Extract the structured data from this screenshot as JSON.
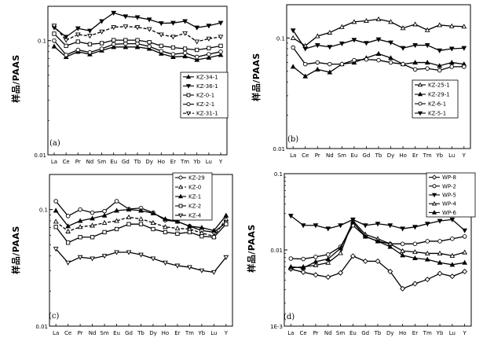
{
  "chart_data": [
    {
      "type": "line",
      "panel_label": "(a)",
      "ylabel": "样品/PAAS",
      "yscale": "log",
      "ylim": [
        0.01,
        0.2
      ],
      "y_ticks": [
        0.01,
        0.1
      ],
      "y_tick_labels": [
        "0.01",
        "0.1"
      ],
      "categories": [
        "La",
        "Ce",
        "Pr",
        "Nd",
        "Sm",
        "Eu",
        "Gd",
        "Tb",
        "Dy",
        "Ho",
        "Er",
        "Tm",
        "Yb",
        "Lu",
        "Y"
      ],
      "series": [
        {
          "name": "KZ-34-1",
          "marker": "tri_up_filled",
          "dash": "",
          "values": [
            0.089,
            0.072,
            0.08,
            0.076,
            0.082,
            0.088,
            0.088,
            0.088,
            0.085,
            0.077,
            0.072,
            0.073,
            0.068,
            0.071,
            0.075
          ]
        },
        {
          "name": "KZ-36-1",
          "marker": "tri_down_filled",
          "dash": "",
          "values": [
            0.13,
            0.108,
            0.128,
            0.122,
            0.148,
            0.175,
            0.163,
            0.16,
            0.153,
            0.142,
            0.143,
            0.148,
            0.13,
            0.135,
            0.143
          ]
        },
        {
          "name": "KZ-0-1",
          "marker": "square_open",
          "dash": "",
          "values": [
            0.115,
            0.09,
            0.098,
            0.093,
            0.095,
            0.101,
            0.101,
            0.101,
            0.097,
            0.09,
            0.087,
            0.085,
            0.083,
            0.086,
            0.09
          ]
        },
        {
          "name": "KZ-2-1",
          "marker": "circle_open",
          "dash": "",
          "values": [
            0.1,
            0.075,
            0.083,
            0.079,
            0.085,
            0.093,
            0.094,
            0.094,
            0.089,
            0.081,
            0.076,
            0.078,
            0.072,
            0.076,
            0.08
          ]
        },
        {
          "name": "KZ-31-1",
          "marker": "tri_down_open",
          "dash": "4,2",
          "values": [
            0.135,
            0.101,
            0.113,
            0.11,
            0.12,
            0.131,
            0.133,
            0.131,
            0.126,
            0.113,
            0.108,
            0.116,
            0.098,
            0.104,
            0.108
          ]
        }
      ]
    },
    {
      "type": "line",
      "panel_label": "(b)",
      "ylabel": "样品/PAAS",
      "yscale": "log",
      "ylim": [
        0.01,
        0.2
      ],
      "y_ticks": [
        0.01,
        0.1
      ],
      "y_tick_labels": [
        "0.01",
        "0.1"
      ],
      "categories": [
        "La",
        "Ce",
        "Pr",
        "Nd",
        "Sm",
        "Eu",
        "Gd",
        "Tb",
        "Dy",
        "Ho",
        "Er",
        "Tm",
        "Yb",
        "Lu",
        "Y"
      ],
      "series": [
        {
          "name": "KZ-25-1",
          "marker": "tri_up_open",
          "dash": "",
          "values": [
            0.1,
            0.085,
            0.104,
            0.112,
            0.126,
            0.14,
            0.143,
            0.148,
            0.14,
            0.123,
            0.133,
            0.118,
            0.131,
            0.128,
            0.127
          ]
        },
        {
          "name": "KZ-29-1",
          "marker": "tri_up_filled",
          "dash": "",
          "values": [
            0.055,
            0.045,
            0.052,
            0.049,
            0.058,
            0.06,
            0.066,
            0.072,
            0.066,
            0.058,
            0.06,
            0.06,
            0.056,
            0.06,
            0.058
          ]
        },
        {
          "name": "KZ-6-1",
          "marker": "circle_open",
          "dash": "",
          "values": [
            0.082,
            0.058,
            0.06,
            0.058,
            0.058,
            0.063,
            0.064,
            0.063,
            0.06,
            0.058,
            0.052,
            0.053,
            0.051,
            0.055,
            0.055
          ]
        },
        {
          "name": "KZ-5-1",
          "marker": "tri_down_filled",
          "dash": "",
          "values": [
            0.117,
            0.08,
            0.086,
            0.083,
            0.089,
            0.096,
            0.09,
            0.097,
            0.091,
            0.081,
            0.086,
            0.086,
            0.077,
            0.08,
            0.081
          ]
        }
      ]
    },
    {
      "type": "line",
      "panel_label": "(c)",
      "ylabel": "样品/PAAS",
      "yscale": "log",
      "ylim": [
        0.01,
        0.2
      ],
      "y_ticks": [
        0.01,
        0.1
      ],
      "y_tick_labels": [
        "0.01",
        "0.1"
      ],
      "categories": [
        "La",
        "Ce",
        "Pr",
        "Nd",
        "Sm",
        "Eu",
        "Gd",
        "Tb",
        "Dy",
        "Ho",
        "Er",
        "Tm",
        "Yb",
        "Lu",
        "Y"
      ],
      "series": [
        {
          "name": "KZ-29",
          "marker": "circle_open",
          "dash": "",
          "values": [
            0.118,
            0.088,
            0.1,
            0.094,
            0.097,
            0.118,
            0.101,
            0.103,
            0.094,
            0.081,
            0.079,
            0.072,
            0.066,
            0.064,
            0.077
          ]
        },
        {
          "name": "KZ-0",
          "marker": "tri_up_open",
          "dash": "4,2",
          "values": [
            0.079,
            0.065,
            0.071,
            0.073,
            0.077,
            0.08,
            0.086,
            0.083,
            0.077,
            0.071,
            0.069,
            0.068,
            0.063,
            0.059,
            0.083
          ]
        },
        {
          "name": "KZ-1",
          "marker": "tri_up_filled",
          "dash": "",
          "values": [
            0.098,
            0.072,
            0.08,
            0.084,
            0.089,
            0.098,
            0.1,
            0.098,
            0.093,
            0.083,
            0.079,
            0.072,
            0.07,
            0.066,
            0.089
          ]
        },
        {
          "name": "KZ-2",
          "marker": "square_open",
          "dash": "",
          "values": [
            0.071,
            0.052,
            0.058,
            0.058,
            0.064,
            0.068,
            0.075,
            0.075,
            0.068,
            0.064,
            0.062,
            0.064,
            0.059,
            0.058,
            0.075
          ]
        },
        {
          "name": "KZ-4",
          "marker": "tri_down_open",
          "dash": "",
          "values": [
            0.046,
            0.035,
            0.039,
            0.038,
            0.04,
            0.043,
            0.043,
            0.041,
            0.038,
            0.035,
            0.033,
            0.032,
            0.03,
            0.029,
            0.039
          ]
        }
      ]
    },
    {
      "type": "line",
      "panel_label": "(d)",
      "ylabel": "样品/PAAS",
      "yscale": "log",
      "ylim": [
        0.001,
        0.1
      ],
      "y_ticks": [
        0.001,
        0.01,
        0.1
      ],
      "y_tick_labels": [
        "1E-3",
        "0.01",
        "0.1"
      ],
      "categories": [
        "La",
        "Ce",
        "Pr",
        "Nd",
        "Sm",
        "Eu",
        "Gd",
        "Tb",
        "Dy",
        "Ho",
        "Er",
        "Tm",
        "Yb",
        "Lu",
        "Y"
      ],
      "series": [
        {
          "name": "WP-8",
          "marker": "diamond_open",
          "dash": "",
          "values": [
            0.0056,
            0.0051,
            0.0047,
            0.0044,
            0.005,
            0.0083,
            0.0071,
            0.0071,
            0.0052,
            0.0031,
            0.0036,
            0.0041,
            0.0049,
            0.0045,
            0.0052
          ]
        },
        {
          "name": "WP-2",
          "marker": "circle_open",
          "dash": "",
          "values": [
            0.0077,
            0.0076,
            0.0081,
            0.0087,
            0.011,
            0.021,
            0.015,
            0.013,
            0.012,
            0.012,
            0.012,
            0.013,
            0.013,
            0.014,
            0.015
          ]
        },
        {
          "name": "WP-5",
          "marker": "tri_down_filled",
          "dash": "",
          "values": [
            0.028,
            0.021,
            0.021,
            0.019,
            0.021,
            0.025,
            0.021,
            0.022,
            0.021,
            0.019,
            0.02,
            0.022,
            0.024,
            0.025,
            0.018
          ]
        },
        {
          "name": "WP-4",
          "marker": "tri_up_open",
          "dash": "",
          "values": [
            0.0058,
            0.006,
            0.0063,
            0.0068,
            0.0091,
            0.024,
            0.016,
            0.014,
            0.012,
            0.0097,
            0.0094,
            0.009,
            0.009,
            0.0084,
            0.0093
          ]
        },
        {
          "name": "WP-6",
          "marker": "tri_up_filled",
          "dash": "",
          "values": [
            0.006,
            0.0058,
            0.007,
            0.0076,
            0.0105,
            0.023,
            0.015,
            0.013,
            0.011,
            0.0085,
            0.0078,
            0.0075,
            0.0068,
            0.0064,
            0.0068
          ]
        }
      ]
    }
  ]
}
